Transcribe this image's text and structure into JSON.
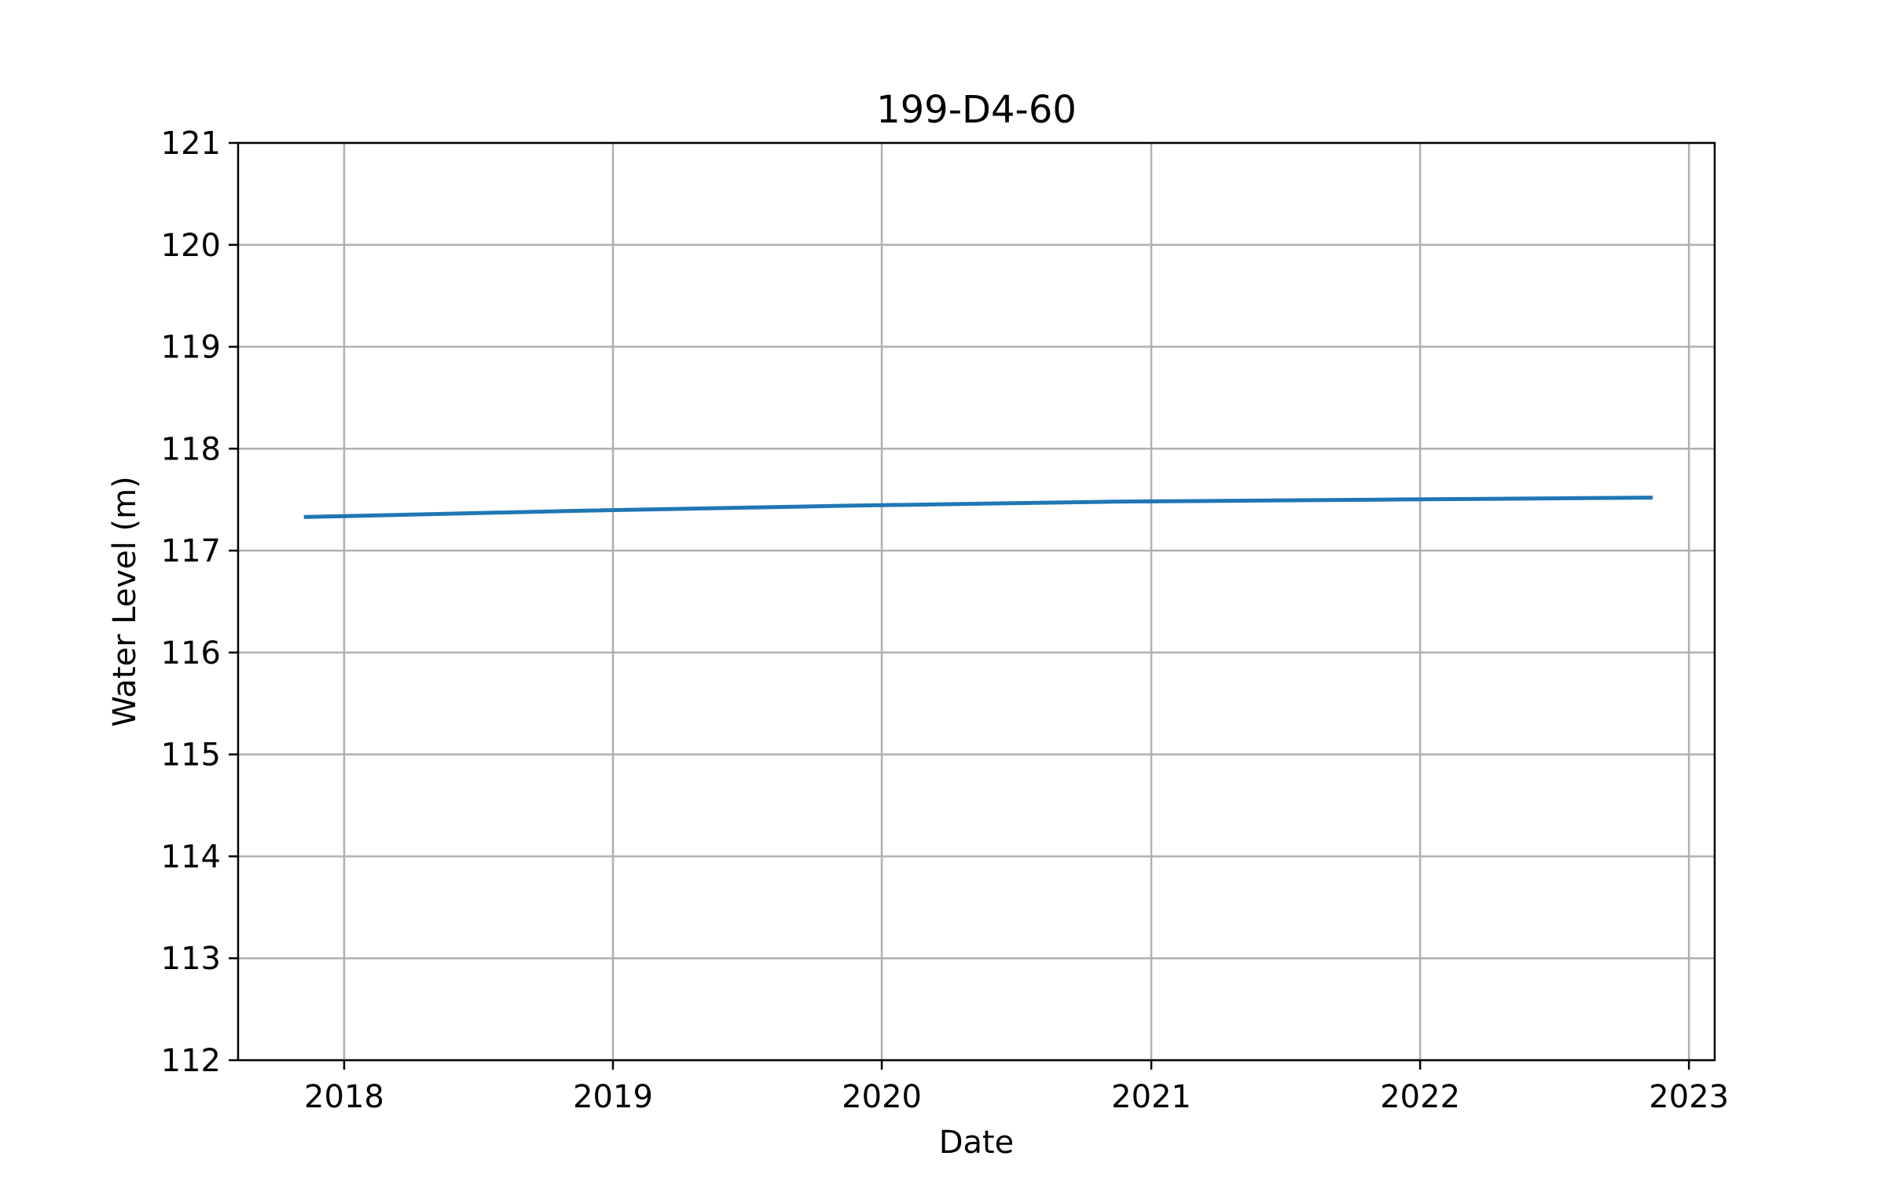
{
  "chart_data": {
    "type": "line",
    "title": "199-D4-60",
    "xlabel": "Date",
    "ylabel": "Water Level (m)",
    "x_tick_labels": [
      "2018",
      "2019",
      "2020",
      "2021",
      "2022",
      "2023"
    ],
    "y_tick_labels": [
      "112",
      "113",
      "114",
      "115",
      "116",
      "117",
      "118",
      "119",
      "120",
      "121"
    ],
    "xlim": [
      "2017-08-10",
      "2023-02-05"
    ],
    "ylim": [
      112,
      121
    ],
    "grid": true,
    "series": [
      {
        "color": "#1f77b4",
        "x": [
          "2017-11-10",
          "2018-11-10",
          "2019-11-10",
          "2020-11-10",
          "2021-11-10",
          "2022-11-10"
        ],
        "y": [
          117.33,
          117.39,
          117.44,
          117.48,
          117.5,
          117.52
        ]
      }
    ]
  }
}
